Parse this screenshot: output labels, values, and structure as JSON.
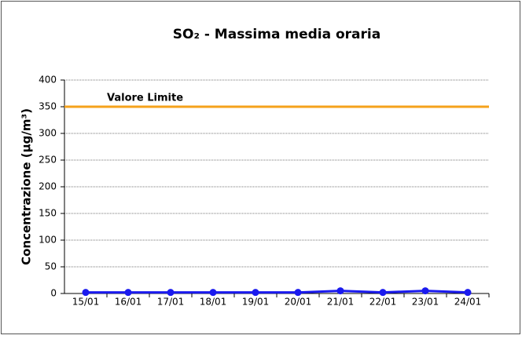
{
  "chart_data": {
    "type": "line",
    "title": "SO₂ - Massima media oraria",
    "y_label": "Concentrazione (µg/m³)",
    "categories": [
      "15/01",
      "16/01",
      "17/01",
      "18/01",
      "19/01",
      "20/01",
      "21/01",
      "22/01",
      "23/01",
      "24/01"
    ],
    "values": [
      2,
      2,
      2,
      2,
      2,
      2,
      5,
      2,
      5,
      2
    ],
    "color": "#1a1aee",
    "limit": {
      "label": "Valore Limite",
      "value": 350,
      "color": "#f5a21b"
    },
    "ylim": [
      0,
      400
    ],
    "yticks": [
      0,
      50,
      100,
      150,
      200,
      250,
      300,
      350,
      400
    ],
    "grid": true
  }
}
